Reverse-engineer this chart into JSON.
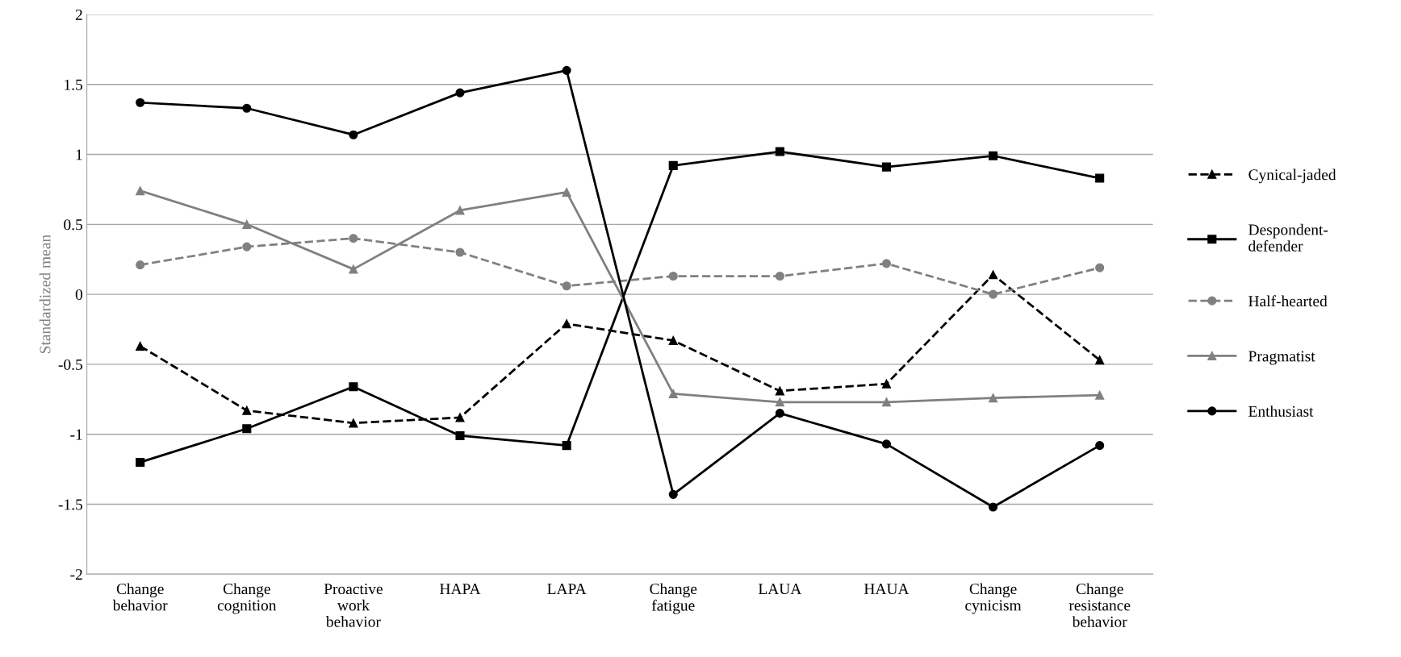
{
  "chart_data": {
    "type": "line",
    "ylabel": "Standardized mean",
    "categories": [
      "Change\nbehavior",
      "Change\ncognition",
      "Proactive\nwork\nbehavior",
      "HAPA",
      "LAPA",
      "Change\nfatigue",
      "LAUA",
      "HAUA",
      "Change\ncynicism",
      "Change\nresistance\nbehavior"
    ],
    "series": [
      {
        "name": "Cynical-jaded",
        "color": "#000000",
        "marker": "triangle",
        "line_style": "dashed",
        "values": [
          -0.37,
          -0.83,
          -0.92,
          -0.88,
          -0.21,
          -0.33,
          -0.69,
          -0.64,
          0.14,
          -0.47
        ]
      },
      {
        "name": "Despondent-\ndefender",
        "color": "#000000",
        "marker": "square",
        "line_style": "solid",
        "values": [
          -1.2,
          -0.96,
          -0.66,
          -1.01,
          -1.08,
          0.92,
          1.02,
          0.91,
          0.99,
          0.83
        ]
      },
      {
        "name": "Half-hearted",
        "color": "#808080",
        "marker": "circle",
        "line_style": "dashed",
        "values": [
          0.21,
          0.34,
          0.4,
          0.3,
          0.06,
          0.13,
          0.13,
          0.22,
          0.0,
          0.19
        ]
      },
      {
        "name": "Pragmatist",
        "color": "#808080",
        "marker": "triangle",
        "line_style": "solid",
        "values": [
          0.74,
          0.5,
          0.18,
          0.6,
          0.73,
          -0.71,
          -0.77,
          -0.77,
          -0.74,
          -0.72
        ]
      },
      {
        "name": "Enthusiast",
        "color": "#000000",
        "marker": "circle",
        "line_style": "solid",
        "values": [
          1.37,
          1.33,
          1.14,
          1.44,
          1.6,
          -1.43,
          -0.85,
          -1.07,
          -1.52,
          -1.08
        ]
      }
    ],
    "ylim": [
      -2,
      2
    ],
    "yticks": [
      -2,
      -1.5,
      -1,
      -0.5,
      0,
      0.5,
      1,
      1.5,
      2
    ],
    "grid": "y",
    "legend": "right"
  }
}
